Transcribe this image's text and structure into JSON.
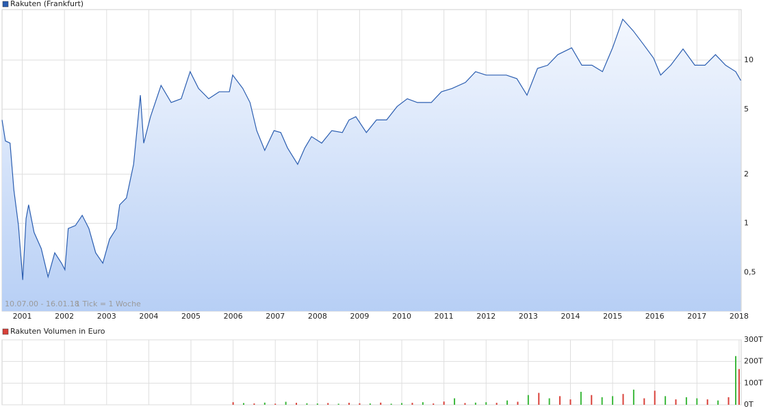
{
  "chart_data": [
    {
      "type": "line",
      "log_scale": true,
      "grid": true,
      "legend": "top-left",
      "annotations": [
        "10.07.00 - 16.01.18",
        "1 Tick = 1 Woche"
      ],
      "x": [
        2000.52,
        2000.6,
        2000.71,
        2000.8,
        2000.91,
        2001.01,
        2001.09,
        2001.15,
        2001.28,
        2001.45,
        2001.61,
        2001.77,
        2001.93,
        2002.01,
        2002.09,
        2002.26,
        2002.42,
        2002.58,
        2002.74,
        2002.91,
        2003.07,
        2003.23,
        2003.31,
        2003.47,
        2003.64,
        2003.8,
        2003.88,
        2004.04,
        2004.29,
        2004.53,
        2004.77,
        2004.98,
        2005.18,
        2005.42,
        2005.67,
        2005.91,
        2005.99,
        2006.23,
        2006.4,
        2006.56,
        2006.75,
        2006.97,
        2007.13,
        2007.29,
        2007.53,
        2007.7,
        2007.86,
        2008.1,
        2008.34,
        2008.59,
        2008.75,
        2008.91,
        2009.16,
        2009.4,
        2009.64,
        2009.89,
        2010.13,
        2010.37,
        2010.7,
        2010.94,
        2011.19,
        2011.51,
        2011.75,
        2012.0,
        2012.24,
        2012.48,
        2012.73,
        2012.97,
        2013.22,
        2013.46,
        2013.7,
        2014.03,
        2014.27,
        2014.51,
        2014.76,
        2015.0,
        2015.24,
        2015.49,
        2015.73,
        2015.97,
        2016.14,
        2016.38,
        2016.67,
        2016.95,
        2017.19,
        2017.44,
        2017.68,
        2017.92,
        2018.04
      ],
      "series": [
        {
          "name": "Rakuten (Frankfurt)",
          "color": "#2a5db0",
          "values": [
            4.3,
            3.2,
            3.1,
            1.6,
            0.97,
            0.45,
            1.07,
            1.3,
            0.88,
            0.7,
            0.47,
            0.66,
            0.57,
            0.52,
            0.93,
            0.97,
            1.12,
            0.93,
            0.66,
            0.57,
            0.8,
            0.93,
            1.3,
            1.43,
            2.3,
            6.1,
            3.1,
            4.5,
            7.0,
            5.5,
            5.8,
            8.5,
            6.7,
            5.8,
            6.4,
            6.4,
            8.1,
            6.7,
            5.5,
            3.7,
            2.8,
            3.7,
            3.6,
            2.9,
            2.3,
            2.9,
            3.4,
            3.1,
            3.7,
            3.6,
            4.3,
            4.5,
            3.6,
            4.3,
            4.3,
            5.2,
            5.8,
            5.5,
            5.5,
            6.4,
            6.7,
            7.3,
            8.5,
            8.1,
            8.1,
            8.1,
            7.7,
            6.1,
            8.9,
            9.3,
            10.8,
            11.9,
            9.3,
            9.3,
            8.5,
            11.9,
            17.8,
            15.1,
            12.5,
            10.3,
            8.1,
            9.3,
            11.7,
            9.3,
            9.3,
            10.8,
            9.3,
            8.5,
            7.5
          ]
        }
      ],
      "xlim": [
        2000.52,
        2018.05
      ],
      "xticks": [
        2001,
        2002,
        2003,
        2004,
        2005,
        2006,
        2007,
        2008,
        2009,
        2010,
        2011,
        2012,
        2013,
        2014,
        2015,
        2016,
        2017,
        2018
      ],
      "ylim": [
        0.29,
        20.4
      ],
      "yticks": [
        {
          "value": 0.5,
          "label": "0,5"
        },
        1,
        2,
        5,
        10
      ]
    },
    {
      "type": "bar",
      "grid": true,
      "legend": "top-left",
      "x": [
        2006.0,
        2006.25,
        2006.5,
        2006.75,
        2007.0,
        2007.25,
        2007.5,
        2007.75,
        2008.0,
        2008.25,
        2008.5,
        2008.75,
        2009.0,
        2009.25,
        2009.5,
        2009.75,
        2010.0,
        2010.25,
        2010.5,
        2010.75,
        2011.0,
        2011.25,
        2011.5,
        2011.75,
        2012.0,
        2012.25,
        2012.5,
        2012.75,
        2013.0,
        2013.25,
        2013.5,
        2013.75,
        2014.0,
        2014.25,
        2014.5,
        2014.75,
        2015.0,
        2015.25,
        2015.5,
        2015.75,
        2016.0,
        2016.25,
        2016.5,
        2016.75,
        2017.0,
        2017.25,
        2017.5,
        2017.75,
        2017.92,
        2018.0
      ],
      "series": [
        {
          "name": "Rakuten Volumen in Euro",
          "color": "#d9413a",
          "values": [
            12,
            8,
            6,
            10,
            5,
            14,
            9,
            7,
            6,
            8,
            5,
            9,
            7,
            6,
            10,
            5,
            8,
            9,
            12,
            6,
            15,
            30,
            8,
            10,
            12,
            9,
            20,
            14,
            45,
            55,
            30,
            40,
            25,
            60,
            45,
            35,
            40,
            50,
            70,
            30,
            65,
            40,
            25,
            35,
            30,
            25,
            20,
            35,
            225,
            165
          ],
          "colors": [
            "#d9413a",
            "#3cb83c",
            "#d9413a",
            "#3cb83c",
            "#d9413a",
            "#3cb83c",
            "#d9413a",
            "#3cb83c",
            "#3cb83c",
            "#d9413a",
            "#3cb83c",
            "#d9413a",
            "#d9413a",
            "#3cb83c",
            "#d9413a",
            "#3cb83c",
            "#3cb83c",
            "#d9413a",
            "#3cb83c",
            "#d9413a",
            "#d9413a",
            "#3cb83c",
            "#d9413a",
            "#3cb83c",
            "#3cb83c",
            "#d9413a",
            "#3cb83c",
            "#d9413a",
            "#3cb83c",
            "#d9413a",
            "#3cb83c",
            "#d9413a",
            "#d9413a",
            "#3cb83c",
            "#d9413a",
            "#3cb83c",
            "#3cb83c",
            "#d9413a",
            "#3cb83c",
            "#d9413a",
            "#d9413a",
            "#3cb83c",
            "#d9413a",
            "#3cb83c",
            "#3cb83c",
            "#d9413a",
            "#3cb83c",
            "#d9413a",
            "#3cb83c",
            "#d9413a"
          ]
        }
      ],
      "xlim": [
        2000.52,
        2018.05
      ],
      "ylim": [
        0,
        300
      ],
      "yticks": [
        {
          "value": 0,
          "label": "0T"
        },
        {
          "value": 100,
          "label": "100T"
        },
        {
          "value": 200,
          "label": "200T"
        },
        {
          "value": 300,
          "label": "300T"
        }
      ]
    }
  ]
}
